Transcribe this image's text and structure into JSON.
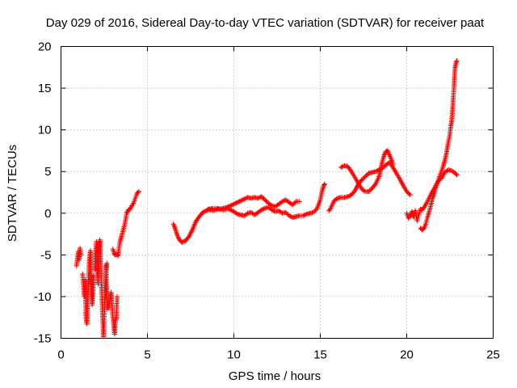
{
  "chart_data": {
    "type": "scatter",
    "title": "Day 029 of 2016, Sidereal Day-to-day VTEC variation (SDTVAR) for receiver paat",
    "xlabel": "GPS time / hours",
    "ylabel": "SDTVAR / TECUs",
    "xlim": [
      0,
      25
    ],
    "ylim": [
      -15,
      20
    ],
    "xticks": [
      0,
      5,
      10,
      15,
      20,
      25
    ],
    "yticks": [
      -15,
      -10,
      -5,
      0,
      5,
      10,
      15,
      20
    ],
    "x_tick_labels": [
      "0",
      "5",
      "10",
      "15",
      "20",
      "25"
    ],
    "y_tick_labels": [
      "-15",
      "-10",
      "-5",
      "0",
      "5",
      "10",
      "15",
      "20"
    ],
    "grid": true,
    "marker": "+",
    "color": "#ff0000",
    "series": [
      {
        "name": "SDTVAR",
        "segments": [
          [
            [
              0.9,
              -6.3
            ],
            [
              1.0,
              -4.6
            ],
            [
              1.05,
              -5.6
            ],
            [
              1.1,
              -4.2
            ],
            [
              1.15,
              -5.0
            ]
          ],
          [
            [
              1.25,
              -7.3
            ],
            [
              1.35,
              -10.0
            ],
            [
              1.4,
              -8.0
            ],
            [
              1.45,
              -12.7
            ],
            [
              1.5,
              -13.3
            ],
            [
              1.55,
              -11.0
            ],
            [
              1.6,
              -7.5
            ],
            [
              1.65,
              -5.5
            ],
            [
              1.7,
              -4.5
            ],
            [
              1.75,
              -8.0
            ],
            [
              1.8,
              -11.0
            ],
            [
              1.85,
              -9.5
            ],
            [
              1.9,
              -7.5
            ]
          ],
          [
            [
              1.95,
              -6.8
            ],
            [
              2.0,
              -4.8
            ],
            [
              2.05,
              -3.4
            ],
            [
              2.1,
              -6.3
            ],
            [
              2.15,
              -8.5
            ],
            [
              2.2,
              -3.7
            ],
            [
              2.25,
              -3.2
            ],
            [
              2.3,
              -6.0
            ],
            [
              2.35,
              -8.9
            ],
            [
              2.4,
              -12.0
            ],
            [
              2.45,
              -14.8
            ],
            [
              2.5,
              -13.0
            ],
            [
              2.55,
              -9.5
            ],
            [
              2.6,
              -7.5
            ],
            [
              2.65,
              -6.0
            ]
          ],
          [
            [
              2.6,
              -6.3
            ],
            [
              2.65,
              -10.0
            ],
            [
              2.7,
              -11.5
            ],
            [
              2.8,
              -10.8
            ],
            [
              2.9,
              -9.5
            ],
            [
              2.95,
              -11.0
            ],
            [
              3.0,
              -12.5
            ],
            [
              3.1,
              -14.5
            ],
            [
              3.15,
              -13.0
            ],
            [
              3.2,
              -12.5
            ],
            [
              3.25,
              -10.0
            ]
          ],
          [
            [
              3.0,
              -4.3
            ],
            [
              3.1,
              -5.0
            ],
            [
              3.2,
              -4.9
            ],
            [
              3.3,
              -5.1
            ],
            [
              3.4,
              -3.5
            ],
            [
              3.5,
              -2.8
            ],
            [
              3.6,
              -2.0
            ],
            [
              3.7,
              -1.2
            ],
            [
              3.8,
              0.0
            ],
            [
              3.9,
              0.4
            ],
            [
              4.0,
              0.5
            ],
            [
              4.1,
              0.9
            ],
            [
              4.2,
              1.2
            ],
            [
              4.3,
              1.8
            ],
            [
              4.4,
              2.4
            ],
            [
              4.5,
              2.6
            ]
          ],
          [
            [
              6.5,
              -1.3
            ],
            [
              6.6,
              -1.8
            ],
            [
              6.7,
              -2.5
            ],
            [
              6.8,
              -3.0
            ],
            [
              6.9,
              -3.3
            ],
            [
              7.0,
              -3.5
            ],
            [
              7.2,
              -3.3
            ],
            [
              7.4,
              -2.8
            ],
            [
              7.6,
              -2.0
            ],
            [
              7.8,
              -1.0
            ],
            [
              8.0,
              -0.4
            ],
            [
              8.2,
              0.1
            ],
            [
              8.4,
              0.3
            ],
            [
              8.6,
              0.5
            ],
            [
              8.8,
              0.6
            ],
            [
              9.0,
              0.6
            ],
            [
              9.2,
              0.5
            ],
            [
              9.4,
              0.6
            ],
            [
              9.6,
              0.7
            ],
            [
              9.8,
              0.9
            ],
            [
              10.0,
              1.1
            ],
            [
              10.2,
              1.3
            ],
            [
              10.4,
              1.5
            ],
            [
              10.6,
              1.7
            ],
            [
              10.8,
              1.9
            ],
            [
              11.0,
              1.8
            ],
            [
              11.2,
              1.9
            ],
            [
              11.4,
              1.8
            ],
            [
              11.6,
              2.0
            ],
            [
              11.8,
              1.6
            ],
            [
              12.0,
              1.2
            ],
            [
              12.2,
              0.9
            ],
            [
              12.4,
              0.8
            ],
            [
              12.6,
              1.1
            ],
            [
              12.8,
              1.4
            ],
            [
              13.0,
              1.6
            ],
            [
              13.2,
              1.3
            ],
            [
              13.4,
              1.0
            ],
            [
              13.6,
              1.4
            ],
            [
              13.8,
              1.4
            ]
          ],
          [
            [
              8.5,
              0.5
            ],
            [
              8.8,
              0.3
            ],
            [
              9.1,
              0.5
            ],
            [
              9.4,
              0.4
            ],
            [
              9.7,
              0.5
            ],
            [
              10.0,
              0.2
            ],
            [
              10.2,
              -0.1
            ],
            [
              10.4,
              -0.2
            ],
            [
              10.6,
              -0.3
            ],
            [
              10.8,
              0.0
            ],
            [
              11.0,
              0.1
            ],
            [
              11.2,
              -0.2
            ],
            [
              11.4,
              0.1
            ],
            [
              11.6,
              0.4
            ],
            [
              11.8,
              0.6
            ],
            [
              12.0,
              0.7
            ],
            [
              12.2,
              0.4
            ],
            [
              12.4,
              0.2
            ],
            [
              12.6,
              0.3
            ],
            [
              12.8,
              0.0
            ],
            [
              13.0,
              0.1
            ],
            [
              13.2,
              -0.3
            ],
            [
              13.4,
              -0.5
            ],
            [
              13.6,
              -0.4
            ],
            [
              13.8,
              -0.3
            ],
            [
              14.0,
              -0.3
            ],
            [
              14.2,
              -0.1
            ],
            [
              14.4,
              0.0
            ],
            [
              14.6,
              0.1
            ],
            [
              14.8,
              0.5
            ],
            [
              15.0,
              1.6
            ],
            [
              15.1,
              2.6
            ],
            [
              15.2,
              3.3
            ],
            [
              15.25,
              3.5
            ]
          ],
          [
            [
              15.5,
              0.3
            ],
            [
              15.6,
              0.6
            ],
            [
              15.8,
              1.5
            ],
            [
              16.0,
              1.8
            ],
            [
              16.2,
              1.9
            ],
            [
              16.4,
              1.9
            ],
            [
              16.6,
              2.0
            ],
            [
              16.8,
              2.2
            ],
            [
              17.0,
              2.7
            ],
            [
              17.2,
              3.5
            ],
            [
              17.4,
              4.0
            ],
            [
              17.6,
              4.4
            ],
            [
              17.8,
              4.8
            ],
            [
              18.0,
              4.9
            ],
            [
              18.2,
              5.0
            ],
            [
              18.4,
              5.2
            ],
            [
              18.6,
              5.4
            ],
            [
              18.8,
              5.8
            ],
            [
              19.0,
              6.1
            ],
            [
              19.2,
              5.5
            ],
            [
              19.4,
              4.8
            ],
            [
              19.6,
              4.1
            ],
            [
              19.8,
              3.3
            ],
            [
              20.0,
              2.6
            ],
            [
              20.2,
              2.2
            ]
          ],
          [
            [
              16.2,
              5.5
            ],
            [
              16.4,
              5.7
            ],
            [
              16.6,
              5.6
            ],
            [
              16.8,
              5.0
            ],
            [
              17.0,
              4.3
            ],
            [
              17.2,
              3.6
            ],
            [
              17.4,
              2.9
            ],
            [
              17.6,
              2.6
            ],
            [
              17.8,
              2.6
            ],
            [
              18.0,
              3.0
            ],
            [
              18.2,
              3.5
            ],
            [
              18.4,
              4.4
            ],
            [
              18.6,
              6.3
            ],
            [
              18.7,
              7.0
            ],
            [
              18.8,
              7.4
            ],
            [
              18.9,
              7.5
            ],
            [
              19.0,
              7.0
            ],
            [
              19.1,
              6.5
            ],
            [
              19.2,
              5.8
            ]
          ],
          [
            [
              20.0,
              0.0
            ],
            [
              20.1,
              -0.6
            ],
            [
              20.2,
              -0.3
            ],
            [
              20.3,
              0.2
            ],
            [
              20.4,
              -0.5
            ],
            [
              20.5,
              0.3
            ],
            [
              20.6,
              -0.9
            ],
            [
              20.7,
              -0.1
            ],
            [
              20.8,
              0.5
            ],
            [
              20.9,
              0.4
            ],
            [
              21.0,
              0.7
            ],
            [
              21.2,
              1.4
            ],
            [
              21.4,
              2.3
            ],
            [
              21.6,
              3.0
            ],
            [
              21.8,
              3.8
            ],
            [
              22.0,
              4.2
            ],
            [
              22.2,
              4.9
            ],
            [
              22.4,
              5.2
            ],
            [
              22.6,
              5.1
            ],
            [
              22.8,
              4.8
            ],
            [
              22.9,
              4.6
            ]
          ],
          [
            [
              20.8,
              -1.8
            ],
            [
              20.9,
              -2.0
            ],
            [
              21.0,
              -1.8
            ],
            [
              21.1,
              -1.3
            ],
            [
              21.2,
              -0.5
            ],
            [
              21.3,
              0.2
            ],
            [
              21.4,
              1.0
            ],
            [
              21.5,
              1.8
            ],
            [
              21.6,
              2.5
            ],
            [
              21.7,
              3.1
            ],
            [
              21.8,
              3.7
            ],
            [
              21.9,
              4.4
            ],
            [
              22.0,
              5.0
            ],
            [
              22.1,
              5.6
            ],
            [
              22.2,
              6.3
            ],
            [
              22.3,
              7.2
            ],
            [
              22.4,
              8.5
            ],
            [
              22.5,
              9.5
            ],
            [
              22.55,
              10.5
            ],
            [
              22.6,
              11.0
            ],
            [
              22.65,
              12.5
            ],
            [
              22.7,
              14.0
            ],
            [
              22.75,
              16.0
            ],
            [
              22.8,
              17.5
            ],
            [
              22.85,
              18.0
            ],
            [
              22.9,
              18.3
            ]
          ]
        ]
      }
    ]
  }
}
